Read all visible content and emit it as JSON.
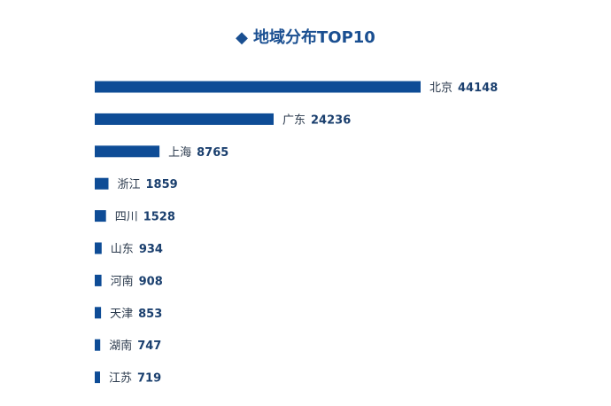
{
  "title": "地域分布TOP10",
  "title_marker": "◆",
  "colors": {
    "bar": "#0e4c96",
    "title": "#1a4f91",
    "name_text": "#2b3a4d",
    "value_text": "#1a3f6e"
  },
  "chart_data": {
    "type": "bar",
    "orientation": "horizontal",
    "title": "地域分布TOP10",
    "categories": [
      "北京",
      "广东",
      "上海",
      "浙江",
      "四川",
      "山东",
      "河南",
      "天津",
      "湖南",
      "江苏"
    ],
    "values": [
      44148,
      24236,
      8765,
      1859,
      1528,
      934,
      908,
      853,
      747,
      719
    ],
    "xlabel": "",
    "ylabel": "",
    "grid": false,
    "legend": "none"
  }
}
